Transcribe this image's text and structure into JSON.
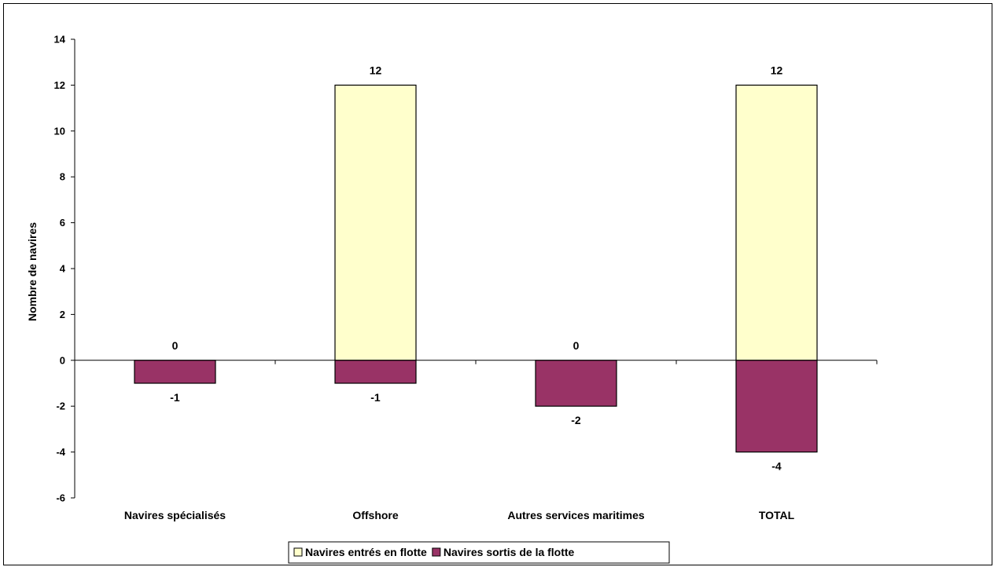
{
  "chart_data": {
    "type": "bar",
    "title": "",
    "xlabel": "",
    "ylabel": "Nombre de navires",
    "ylim": [
      -6,
      14
    ],
    "ytick_step": 2,
    "grid": false,
    "legend_position": "bottom",
    "categories": [
      "Navires spécialisés",
      "Offshore",
      "Autres services maritimes",
      "TOTAL"
    ],
    "series": [
      {
        "name": "Navires entrés en flotte",
        "color": "#ffffcc",
        "values": [
          0,
          12,
          0,
          12
        ]
      },
      {
        "name": "Navires sortis de la flotte",
        "color": "#993366",
        "values": [
          -1,
          -1,
          -2,
          -4
        ]
      }
    ]
  }
}
